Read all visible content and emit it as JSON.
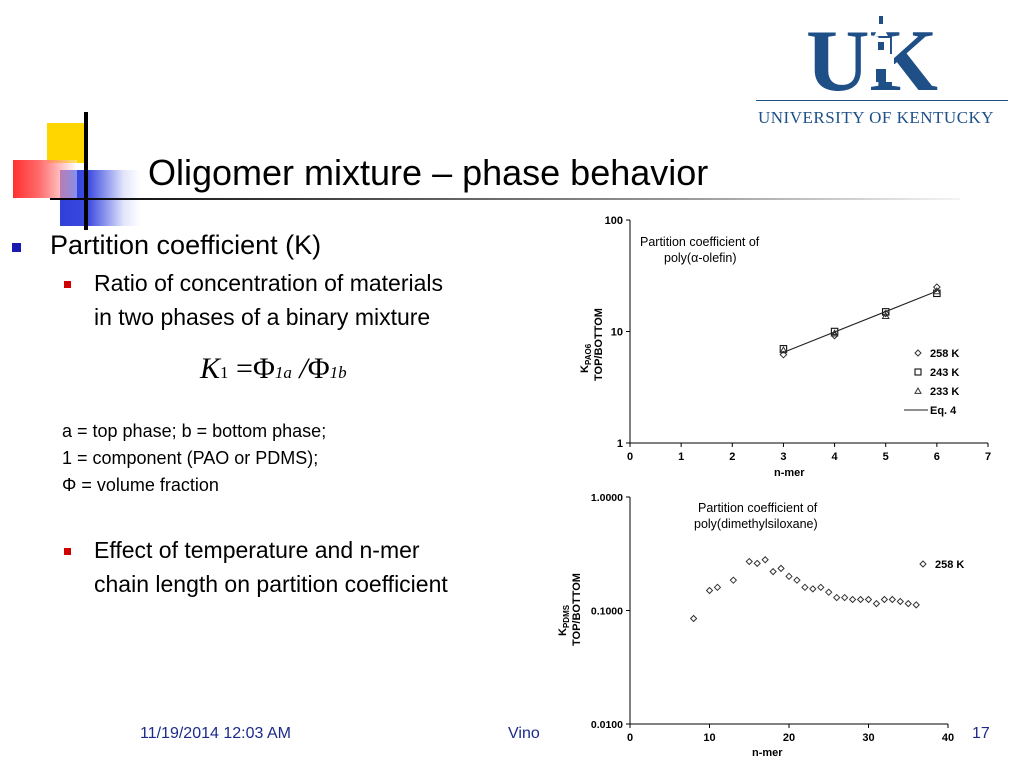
{
  "slide": {
    "title": "Oligomer mixture – phase behavior",
    "logo": {
      "letters": "UK",
      "name": "UNIVERSITY OF KENTUCKY",
      "color": "#1e4f87"
    },
    "bullets": {
      "main": "Partition coefficient (K)",
      "sub1_line1": "Ratio of concentration of materials",
      "sub1_line2": "in two phases of a binary mixture",
      "sub2_line1": "Effect of temperature and n-mer",
      "sub2_line2": "chain length on partition coefficient"
    },
    "formula": {
      "lhs": "K",
      "lhs_sub": "1",
      "eq": "=",
      "phi": "Φ",
      "a_sub": "1a",
      "slash": "/",
      "b_sub": "1b"
    },
    "notes": {
      "line1": "a = top phase; b = bottom phase;",
      "line2": "1 = component  (PAO or PDMS);",
      "line3": "Φ = volume fraction"
    },
    "footer": {
      "date": "11/19/2014 12:03 AM",
      "author": "Vino",
      "page": "17"
    }
  },
  "chart_data": [
    {
      "type": "scatter",
      "title": "Partition coefficient of poly(α-olefin)",
      "title_line1": "Partition coefficient of",
      "title_line2": "poly(α-olefin)",
      "xlabel": "n-mer",
      "ylabel_line1": "K",
      "ylabel_sub": "PAO6",
      "ylabel_line2": "TOP/BOTTOM",
      "ylog": true,
      "xlim": [
        0,
        7
      ],
      "ylim": [
        1,
        100
      ],
      "xticks": [
        "0",
        "1",
        "2",
        "3",
        "4",
        "5",
        "6",
        "7"
      ],
      "yticks": [
        "1",
        "10",
        "100"
      ],
      "legend": [
        "258 K",
        "243 K",
        "233 K",
        "Eq. 4"
      ],
      "legend_position": "bottom-right",
      "series": [
        {
          "name": "258 K",
          "marker": "diamond",
          "x": [
            3,
            4,
            5,
            6
          ],
          "y": [
            6.2,
            9.2,
            14.5,
            25
          ]
        },
        {
          "name": "243 K",
          "marker": "square",
          "x": [
            3,
            4,
            5,
            6
          ],
          "y": [
            7.0,
            10.0,
            15.0,
            22
          ]
        },
        {
          "name": "233 K",
          "marker": "triangle",
          "x": [
            3,
            4,
            5,
            6
          ],
          "y": [
            6.8,
            9.6,
            13.8,
            23
          ]
        },
        {
          "name": "Eq. 4",
          "marker": "line",
          "x": [
            3,
            6
          ],
          "y": [
            6.5,
            23
          ]
        }
      ]
    },
    {
      "type": "scatter",
      "title": "Partition coefficient of poly(dimethylsiloxane)",
      "title_line1": "Partition coefficient of",
      "title_line2": "poly(dimethylsiloxane)",
      "xlabel": "n-mer",
      "ylabel_line1": "K",
      "ylabel_sub": "PDMS",
      "ylabel_line2": "TOP/BOTTOM",
      "ylog": true,
      "xlim": [
        0,
        40
      ],
      "ylim": [
        0.01,
        1
      ],
      "xticks": [
        "0",
        "10",
        "20",
        "30",
        "40"
      ],
      "yticks": [
        "0.0100",
        "0.1000",
        "1.0000"
      ],
      "legend": [
        "258 K"
      ],
      "series": [
        {
          "name": "258 K",
          "marker": "diamond",
          "x": [
            8,
            10,
            11,
            13,
            15,
            16,
            17,
            18,
            19,
            20,
            21,
            22,
            23,
            24,
            25,
            26,
            27,
            28,
            29,
            30,
            31,
            32,
            33,
            34,
            35,
            36
          ],
          "y": [
            0.085,
            0.15,
            0.16,
            0.185,
            0.27,
            0.26,
            0.28,
            0.22,
            0.235,
            0.2,
            0.185,
            0.16,
            0.155,
            0.16,
            0.145,
            0.13,
            0.13,
            0.125,
            0.125,
            0.125,
            0.115,
            0.125,
            0.125,
            0.12,
            0.115,
            0.112
          ]
        }
      ]
    }
  ]
}
